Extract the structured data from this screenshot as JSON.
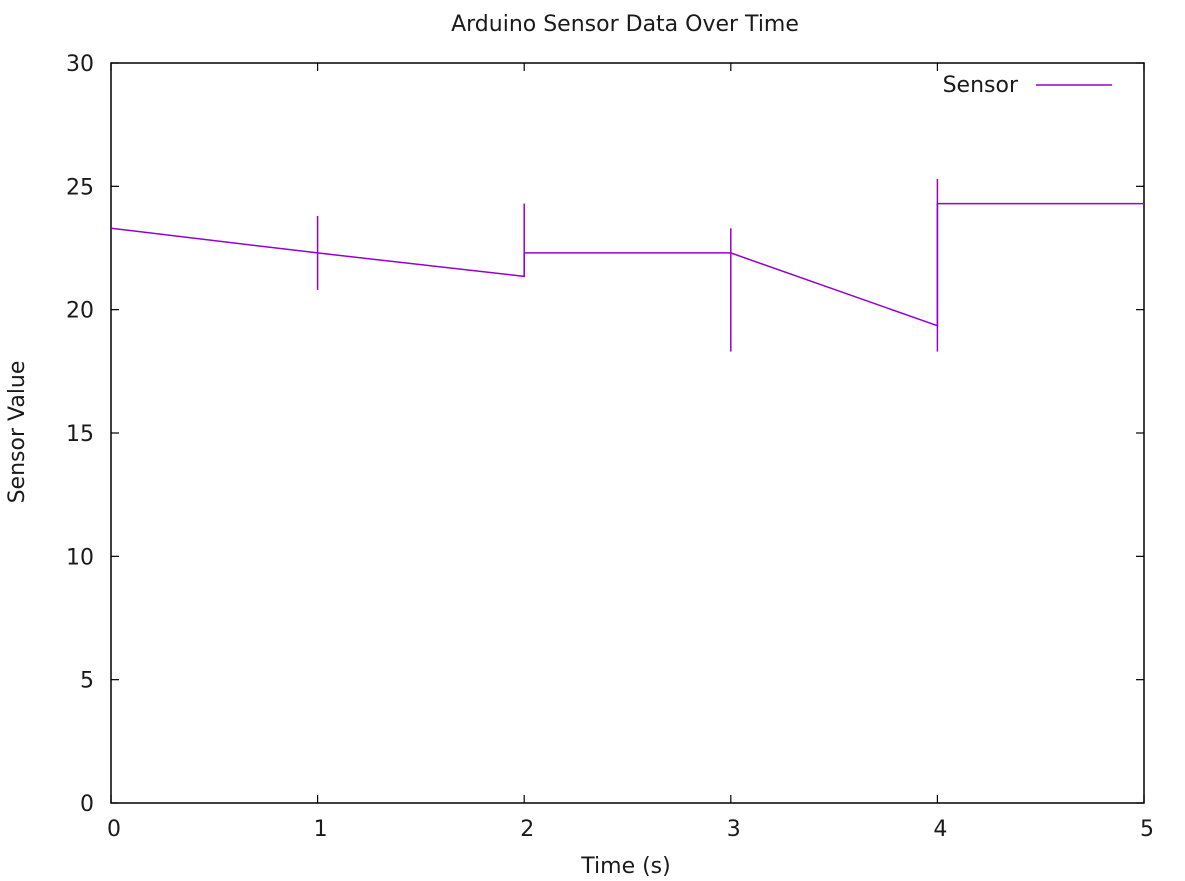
{
  "chart_data": {
    "type": "line",
    "title": "Arduino Sensor Data Over Time",
    "xlabel": "Time (s)",
    "ylabel": "Sensor Value",
    "xlim": [
      0,
      5
    ],
    "ylim": [
      0,
      30
    ],
    "x_ticks": [
      "0",
      "1",
      "2",
      "3",
      "4",
      "5"
    ],
    "y_ticks": [
      "0",
      "5",
      "10",
      "15",
      "20",
      "25",
      "30"
    ],
    "grid": false,
    "legend_position": "top-right",
    "series": [
      {
        "name": "Sensor",
        "color": "#9400d3",
        "points": [
          [
            0,
            23.3
          ],
          [
            1,
            22.3
          ],
          [
            2,
            21.35
          ],
          [
            2,
            22.3
          ],
          [
            3,
            22.3
          ],
          [
            4,
            19.35
          ],
          [
            4,
            24.3
          ],
          [
            5,
            24.3
          ]
        ],
        "error_bars": [
          {
            "x": 1,
            "y_low": 20.8,
            "y_high": 23.8
          },
          {
            "x": 2,
            "y_low": 21.35,
            "y_high": 24.3
          },
          {
            "x": 3,
            "y_low": 18.3,
            "y_high": 23.3
          },
          {
            "x": 4,
            "y_low": 18.3,
            "y_high": 25.3
          }
        ]
      }
    ]
  }
}
